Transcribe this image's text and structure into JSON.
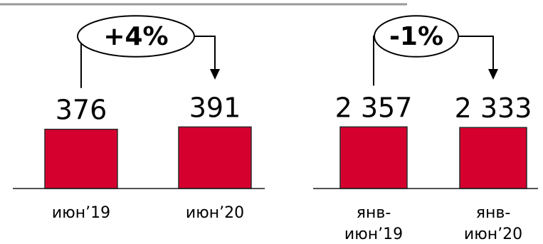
{
  "chart_data": [
    {
      "type": "bar",
      "categories": [
        [
          "июн’19"
        ],
        [
          "июн’20"
        ]
      ],
      "values": [
        376,
        391
      ],
      "value_labels": [
        "376",
        "391"
      ],
      "change_label": "+4%",
      "ylim": [
        0,
        420
      ]
    },
    {
      "type": "bar",
      "categories": [
        [
          "янв-",
          "июн’19"
        ],
        [
          "янв-",
          "июн’20"
        ]
      ],
      "values": [
        2357,
        2333
      ],
      "value_labels": [
        "2 357",
        "2 333"
      ],
      "change_label": "-1%",
      "ylim": [
        0,
        2530
      ]
    }
  ],
  "colors": {
    "bar": "#d6002f",
    "bar_border": "#2b2b2b",
    "top_rule": "#9a9a9a"
  }
}
